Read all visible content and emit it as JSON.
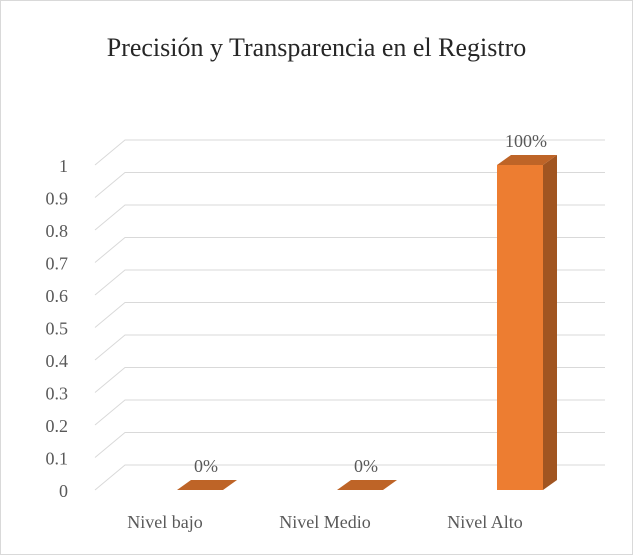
{
  "chart_data": {
    "type": "bar",
    "title": "Precisión y Transparencia en el Registro",
    "categories": [
      "Nivel bajo",
      "Nivel Medio",
      "Nivel Alto"
    ],
    "values": [
      0,
      0,
      1
    ],
    "value_labels": [
      "0%",
      "0%",
      "100%"
    ],
    "color": "#ED7D31",
    "ylim": [
      0,
      1
    ],
    "yticks": [
      0,
      0.1,
      0.2,
      0.3,
      0.4,
      0.5,
      0.6,
      0.7,
      0.8,
      0.9,
      1
    ],
    "grid": true
  }
}
